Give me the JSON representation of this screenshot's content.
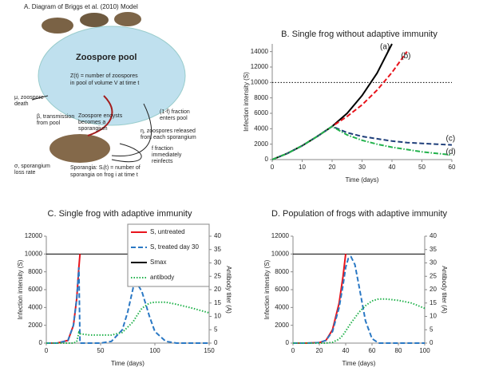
{
  "diagram": {
    "title": "A. Diagram of Briggs et al. (2010) Model",
    "pool": "Zoospore pool",
    "labels": [
      "Z(t) = number of zoospores",
      "in pool of volume V at time t",
      "μ, zoospore",
      "death",
      "β, transmission",
      "from pool",
      "Zoospore encysts",
      "becomes a",
      "sporangium",
      "(1-f) fraction",
      "enters pool",
      "η, zoospores released",
      "from each sporangium",
      "f fraction",
      "immediately",
      "reinfects",
      "σ, sporangium",
      "loss rate",
      "Sporangia: Sᵢ(t) = number of",
      "sporangia on frog i at time t"
    ]
  },
  "chart_data": [
    {
      "type": "line",
      "title": "B. Single frog without adaptive immunity",
      "xlabel": "Time (days)",
      "ylabel": "Infection intensity (S)",
      "x": [
        0,
        5,
        10,
        15,
        20,
        25,
        30,
        35,
        40,
        45,
        50,
        55,
        60
      ],
      "xlim": [
        0,
        60
      ],
      "xticks": [
        0,
        10,
        20,
        30,
        40,
        50,
        60
      ],
      "ylim": [
        0,
        15000
      ],
      "yticks": [
        0,
        2000,
        4000,
        6000,
        8000,
        10000,
        12000,
        14000
      ],
      "hline": {
        "value": 10000,
        "color": "#000000",
        "dash": "dotted"
      },
      "series": [
        {
          "color": "#000000",
          "dash": "solid",
          "values": [
            0,
            800,
            1800,
            3000,
            4300,
            6000,
            8300,
            11200,
            15000,
            null,
            null,
            null,
            null
          ]
        },
        {
          "color": "#e8141c",
          "dash": "dashed",
          "values": [
            0,
            800,
            1800,
            3000,
            4300,
            5600,
            7100,
            9000,
            11300,
            14000,
            null,
            null,
            null
          ]
        },
        {
          "color": "#1f3f7a",
          "dash": "dashed",
          "values": [
            0,
            800,
            1800,
            3000,
            4300,
            3500,
            3000,
            2700,
            2400,
            2200,
            2100,
            2000,
            1900
          ]
        },
        {
          "color": "#22b24c",
          "dash": "dashdot",
          "values": [
            0,
            800,
            1800,
            3000,
            4300,
            3200,
            2500,
            2000,
            1600,
            1300,
            1000,
            800,
            600
          ]
        }
      ],
      "annotations": [
        "(a)",
        "(b)",
        "(c)",
        "(d)"
      ]
    },
    {
      "type": "line",
      "title": "C. Single frog with adaptive immunity",
      "xlabel": "Time (days)",
      "ylabel": "Infection intensity (S)",
      "y2label": "Antibody titer (A)",
      "x": [
        0,
        10,
        20,
        25,
        28,
        30,
        31,
        40,
        50,
        60,
        70,
        75,
        80,
        83,
        88,
        95,
        100,
        110,
        120,
        135,
        150
      ],
      "xlim": [
        0,
        150
      ],
      "xticks": [
        0,
        50,
        100,
        150
      ],
      "ylim": [
        0,
        12000
      ],
      "yticks": [
        0,
        2000,
        4000,
        6000,
        8000,
        10000,
        12000
      ],
      "y2lim": [
        0,
        40
      ],
      "y2ticks": [
        0,
        5,
        10,
        15,
        20,
        25,
        30,
        35,
        40
      ],
      "hline": {
        "name": "Smax",
        "value": 10000,
        "color": "#000000",
        "dash": "solid"
      },
      "series": [
        {
          "name": "S, untreated",
          "color": "#e8141c",
          "dash": "solid",
          "values": [
            0,
            0,
            300,
            2000,
            5000,
            8500,
            10000,
            null,
            null,
            null,
            null,
            null,
            null,
            null,
            null,
            null,
            null,
            null,
            null,
            null,
            null
          ]
        },
        {
          "name": "S, treated day 30",
          "color": "#2a78c4",
          "dash": "dashed",
          "values": [
            0,
            0,
            300,
            2000,
            5000,
            8500,
            0,
            0,
            0,
            200,
            1500,
            3500,
            6200,
            6800,
            5800,
            3000,
            1300,
            200,
            0,
            0,
            0
          ]
        },
        {
          "name": "antibody",
          "color": "#22b24c",
          "dash": "dotted",
          "axis": "y2",
          "values": [
            0,
            0,
            0,
            0,
            0.5,
            4,
            3.5,
            3,
            3,
            3,
            4,
            6,
            8,
            10,
            13,
            15,
            15.3,
            15.3,
            14.5,
            13,
            11.3
          ]
        }
      ]
    },
    {
      "type": "line",
      "title": "D. Population of frogs with adaptive immunity",
      "xlabel": "Time (days)",
      "ylabel": "Infection intensity (S)",
      "y2label": "Antibody titer (A)",
      "x": [
        0,
        10,
        20,
        25,
        30,
        35,
        38,
        40,
        42,
        44,
        47,
        50,
        55,
        60,
        65,
        70,
        80,
        90,
        100
      ],
      "xlim": [
        0,
        100
      ],
      "xticks": [
        0,
        20,
        40,
        60,
        80,
        100
      ],
      "ylim": [
        0,
        12000
      ],
      "yticks": [
        0,
        2000,
        4000,
        6000,
        8000,
        10000,
        12000
      ],
      "y2lim": [
        0,
        40
      ],
      "y2ticks": [
        0,
        5,
        10,
        15,
        20,
        25,
        30,
        35,
        40
      ],
      "hline": {
        "value": 10000,
        "color": "#000000",
        "dash": "solid"
      },
      "series": [
        {
          "color": "#e8141c",
          "dash": "solid",
          "values": [
            0,
            0,
            50,
            300,
            1500,
            4500,
            7500,
            10000,
            null,
            null,
            null,
            null,
            null,
            null,
            null,
            null,
            null,
            null,
            null
          ]
        },
        {
          "color": "#2a78c4",
          "dash": "dashed",
          "values": [
            0,
            0,
            50,
            300,
            1300,
            4000,
            6500,
            8500,
            9500,
            9700,
            8800,
            6500,
            2500,
            500,
            0,
            0,
            0,
            0,
            0
          ]
        },
        {
          "color": "#22b24c",
          "dash": "dotted",
          "axis": "y2",
          "values": [
            0,
            0,
            0,
            0,
            0.3,
            1.5,
            3,
            4.5,
            6,
            7.5,
            9.5,
            11.5,
            14,
            15.8,
            16.5,
            16.5,
            16,
            15,
            13
          ]
        }
      ]
    }
  ]
}
